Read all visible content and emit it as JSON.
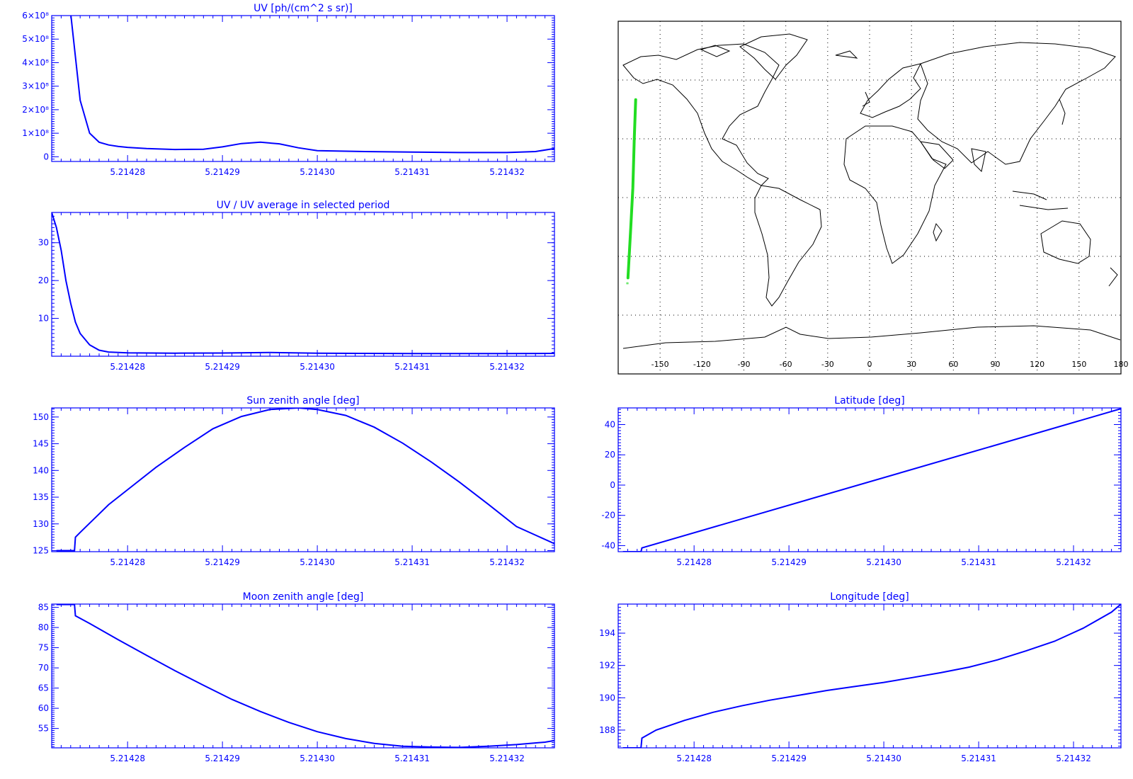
{
  "colors": {
    "axis": "#0000ff",
    "series": "#0000ff",
    "track": "#22dd22",
    "map_frame": "#000000",
    "coast": "#000000",
    "background": "#ffffff"
  },
  "x_tick_labels": [
    "5.21428",
    "5.21429",
    "5.21430",
    "5.21431",
    "5.21432"
  ],
  "chart_data": [
    {
      "id": "uv",
      "type": "line",
      "title": "UV [ph/(cm^2 s sr)]",
      "xlabel": "",
      "ylabel": "",
      "xlim": [
        5.214272,
        5.214325
      ],
      "ylim": [
        -20000000.0,
        600000000.0
      ],
      "y_ticks": [
        0,
        100000000.0,
        200000000.0,
        300000000.0,
        400000000.0,
        500000000.0,
        600000000.0
      ],
      "y_tick_labels": [
        "0",
        "1×10⁸",
        "2×10⁸",
        "3×10⁸",
        "4×10⁸",
        "5×10⁸",
        "6×10⁸"
      ],
      "x_ticks": [
        5.21428,
        5.21429,
        5.2143,
        5.21431,
        5.21432
      ],
      "x": [
        5.214274,
        5.214275,
        5.214276,
        5.214277,
        5.214278,
        5.214279,
        5.21428,
        5.214282,
        5.214285,
        5.214288,
        5.21429,
        5.214292,
        5.214294,
        5.214296,
        5.214298,
        5.2143,
        5.214305,
        5.21431,
        5.214315,
        5.21432,
        5.214323,
        5.214325
      ],
      "y": [
        610000000.0,
        240000000.0,
        100000000.0,
        62000000.0,
        50000000.0,
        44000000.0,
        40000000.0,
        35000000.0,
        31000000.0,
        32000000.0,
        42000000.0,
        56000000.0,
        62000000.0,
        55000000.0,
        38000000.0,
        26000000.0,
        22000000.0,
        20000000.0,
        18000000.0,
        18000000.0,
        22000000.0,
        35000000.0
      ]
    },
    {
      "id": "uv-ratio",
      "type": "line",
      "title": "UV / UV average in selected period",
      "xlabel": "",
      "ylabel": "",
      "xlim": [
        5.214272,
        5.214325
      ],
      "ylim": [
        0,
        38
      ],
      "y_ticks": [
        10,
        20,
        30
      ],
      "y_tick_labels": [
        "10",
        "20",
        "30"
      ],
      "x_ticks": [
        5.21428,
        5.21429,
        5.2143,
        5.21431,
        5.21432
      ],
      "x": [
        5.214272,
        5.2142725,
        5.214273,
        5.2142735,
        5.214274,
        5.2142745,
        5.214275,
        5.214276,
        5.214277,
        5.214278,
        5.21428,
        5.214285,
        5.21429,
        5.214295,
        5.2143,
        5.214305,
        5.21431,
        5.214315,
        5.21432,
        5.214325
      ],
      "y": [
        38,
        34,
        28,
        20,
        14,
        9,
        6,
        3,
        1.6,
        1.1,
        0.9,
        0.8,
        0.85,
        1.0,
        0.8,
        0.75,
        0.72,
        0.7,
        0.7,
        0.75
      ]
    },
    {
      "id": "sun-zenith",
      "type": "line",
      "title": "Sun zenith angle [deg]",
      "xlabel": "",
      "ylabel": "",
      "xlim": [
        5.214272,
        5.214325
      ],
      "ylim": [
        124.8,
        151.7
      ],
      "y_ticks": [
        125,
        130,
        135,
        140,
        145,
        150
      ],
      "y_tick_labels": [
        "125",
        "130",
        "135",
        "140",
        "145",
        "150"
      ],
      "x_ticks": [
        5.21428,
        5.21429,
        5.2143,
        5.21431,
        5.21432
      ],
      "x": [
        5.2142725,
        5.2142744,
        5.2142745,
        5.214275,
        5.214278,
        5.21428,
        5.214283,
        5.214286,
        5.214289,
        5.214292,
        5.214295,
        5.214298,
        5.2143,
        5.214303,
        5.214306,
        5.214309,
        5.214312,
        5.214315,
        5.214318,
        5.214321,
        5.214325
      ],
      "y": [
        125,
        125,
        127.5,
        128.4,
        133.6,
        136.4,
        140.6,
        144.3,
        147.8,
        150.1,
        151.4,
        151.7,
        151.4,
        150.3,
        148.1,
        145.1,
        141.6,
        137.8,
        133.7,
        129.5,
        126.3
      ]
    },
    {
      "id": "moon-zenith",
      "type": "line",
      "title": "Moon zenith angle [deg]",
      "xlabel": "",
      "ylabel": "",
      "xlim": [
        5.214272,
        5.214325
      ],
      "ylim": [
        50.2,
        85.8
      ],
      "y_ticks": [
        55,
        60,
        65,
        70,
        75,
        80,
        85
      ],
      "y_tick_labels": [
        "55",
        "60",
        "65",
        "70",
        "75",
        "80",
        "85"
      ],
      "x_ticks": [
        5.21428,
        5.21429,
        5.2143,
        5.21431,
        5.21432
      ],
      "x": [
        5.2142725,
        5.2142744,
        5.2142745,
        5.214276,
        5.214279,
        5.214282,
        5.214285,
        5.214288,
        5.214291,
        5.214294,
        5.214297,
        5.2143,
        5.214303,
        5.214306,
        5.214309,
        5.214312,
        5.214315,
        5.214318,
        5.214321,
        5.214324,
        5.214325
      ],
      "y": [
        85.7,
        85.7,
        82.9,
        81.0,
        77.0,
        73.1,
        69.3,
        65.7,
        62.2,
        59.2,
        56.5,
        54.2,
        52.5,
        51.3,
        50.6,
        50.4,
        50.3,
        50.6,
        51.0,
        51.6,
        52.0
      ]
    },
    {
      "id": "latitude",
      "type": "line",
      "title": "Latitude [deg]",
      "xlabel": "",
      "ylabel": "",
      "xlim": [
        5.214272,
        5.214325
      ],
      "ylim": [
        -44,
        51
      ],
      "y_ticks": [
        -40,
        -20,
        0,
        20,
        40
      ],
      "y_tick_labels": [
        "-40",
        "-20",
        "0",
        "20",
        "40"
      ],
      "x_ticks": [
        5.21428,
        5.21429,
        5.2143,
        5.21431,
        5.21432
      ],
      "x": [
        5.2142725,
        5.2142744,
        5.2142745,
        5.214325
      ],
      "y": [
        -44,
        -44,
        -41.5,
        50.5
      ]
    },
    {
      "id": "longitude",
      "type": "line",
      "title": "Longitude [deg]",
      "xlabel": "",
      "ylabel": "",
      "xlim": [
        5.214272,
        5.214325
      ],
      "ylim": [
        186.9,
        195.8
      ],
      "y_ticks": [
        188,
        190,
        192,
        194
      ],
      "y_tick_labels": [
        "188",
        "190",
        "192",
        "194"
      ],
      "x_ticks": [
        5.21428,
        5.21429,
        5.2143,
        5.21431,
        5.21432
      ],
      "x": [
        5.2142725,
        5.2142744,
        5.2142745,
        5.214276,
        5.214279,
        5.214282,
        5.214285,
        5.214288,
        5.214291,
        5.214294,
        5.214297,
        5.2143,
        5.214303,
        5.214306,
        5.214309,
        5.214312,
        5.214315,
        5.214318,
        5.214321,
        5.214324,
        5.214325
      ],
      "y": [
        186.9,
        186.9,
        187.5,
        188.0,
        188.6,
        189.1,
        189.5,
        189.85,
        190.15,
        190.45,
        190.7,
        190.95,
        191.25,
        191.55,
        191.9,
        192.35,
        192.9,
        193.5,
        194.3,
        195.3,
        195.8
      ]
    }
  ],
  "map": {
    "xlim": [
      -180,
      180
    ],
    "ylim": [
      -90,
      90
    ],
    "lon_ticks": [
      -150,
      -120,
      -90,
      -60,
      -30,
      0,
      30,
      60,
      90,
      120,
      150,
      180
    ],
    "lon_tick_labels": [
      "-150",
      "-120",
      "-90",
      "-60",
      "-30",
      "0",
      "30",
      "60",
      "90",
      "120",
      "150",
      "180"
    ],
    "grid": "dotted",
    "track": {
      "lon": [
        -173,
        -171,
        -169.5,
        -168.5,
        -167.5
      ],
      "lat": [
        -41,
        -15,
        5,
        30,
        50
      ]
    },
    "coast_icon": "world-coastlines"
  }
}
